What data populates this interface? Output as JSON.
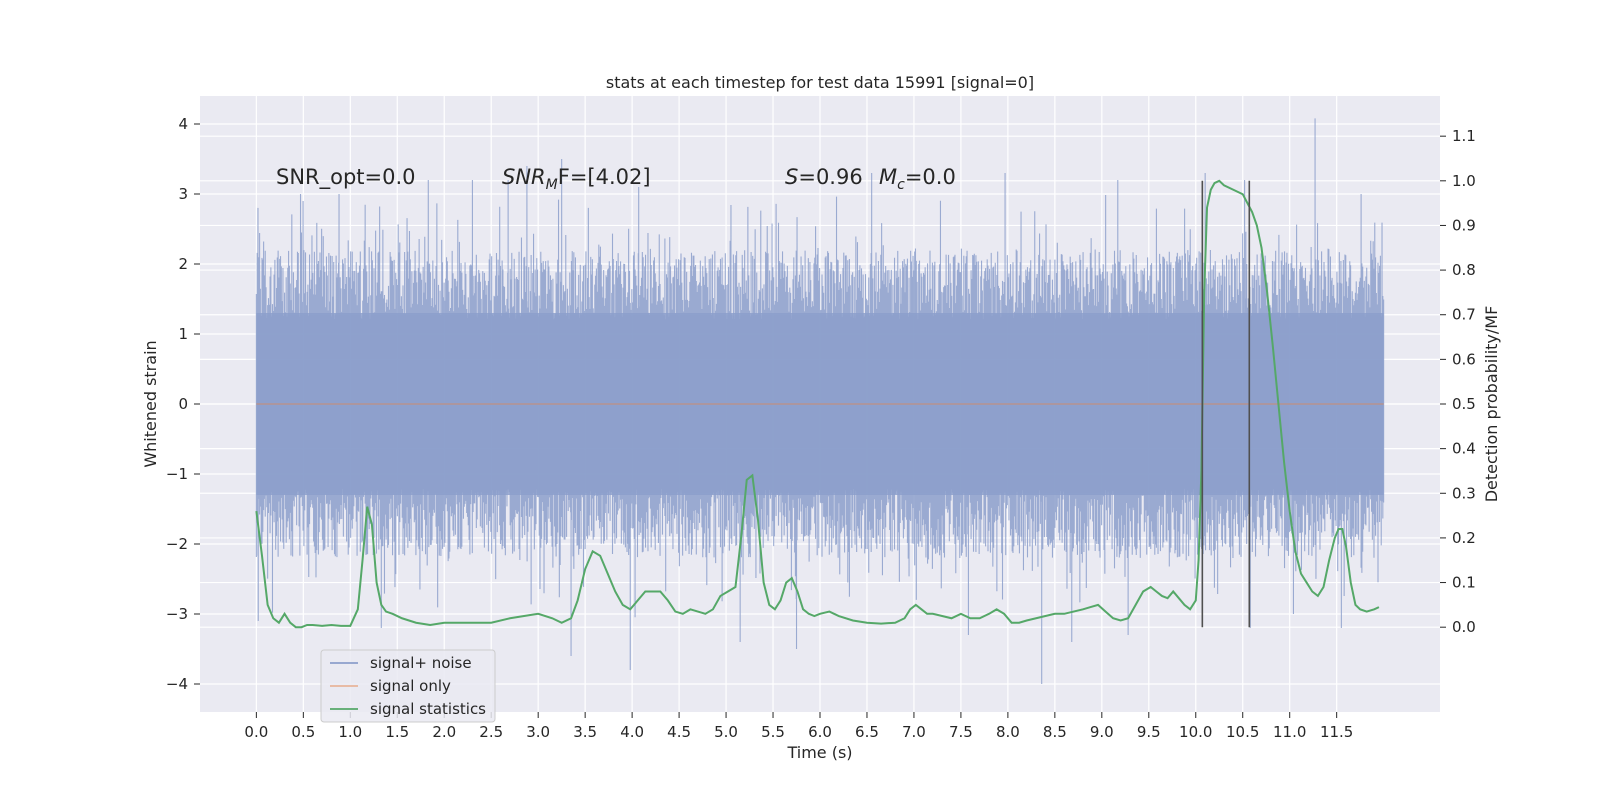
{
  "chart_data": {
    "type": "line",
    "title": "stats at each timestep for test data 15991 [signal=0]",
    "xlabel": "Time (s)",
    "ylabel": "Whitened strain",
    "y2label": "Detection probability/MF",
    "xlim": [
      -0.6,
      12.6
    ],
    "ylim": [
      -4.4,
      4.4
    ],
    "y2lim": [
      -0.19,
      1.19
    ],
    "x_ticks": [
      0.0,
      0.5,
      1.0,
      1.5,
      2.0,
      2.5,
      3.0,
      3.5,
      4.0,
      4.5,
      5.0,
      5.5,
      6.0,
      6.5,
      7.0,
      7.5,
      8.0,
      8.5,
      9.0,
      9.5,
      10.0,
      10.5,
      11.0,
      11.5
    ],
    "x_tick_labels": [
      "0.0",
      "0.5",
      "1.0",
      "1.5",
      "2.0",
      "2.5",
      "3.0",
      "3.5",
      "4.0",
      "4.5",
      "5.0",
      "5.5",
      "6.0",
      "6.5",
      "7.0",
      "7.5",
      "8.0",
      "8.5",
      "9.0",
      "9.5",
      "10.0",
      "10.5",
      "11.0",
      "11.5"
    ],
    "y_ticks": [
      4,
      3,
      2,
      1,
      0,
      -1,
      -2,
      -3,
      -4
    ],
    "y_tick_labels": [
      "4",
      "3",
      "2",
      "1",
      "0",
      "−1",
      "−2",
      "−3",
      "−4"
    ],
    "y2_ticks": [
      1.1,
      1.0,
      0.9,
      0.8,
      0.7,
      0.6,
      0.5,
      0.4,
      0.3,
      0.2,
      0.1,
      0.0
    ],
    "y2_tick_labels": [
      "1.1",
      "1.0",
      "0.9",
      "0.8",
      "0.7",
      "0.6",
      "0.5",
      "0.4",
      "0.3",
      "0.2",
      "0.1",
      "0.0"
    ],
    "grid": true,
    "legend": {
      "position": "lower-left",
      "entries": [
        {
          "label": "signal+ noise",
          "color": "#8c9fcb"
        },
        {
          "label": "signal only",
          "color": "#dd8452"
        },
        {
          "label": "signal statistics",
          "color": "#55a868"
        }
      ]
    },
    "annotations": {
      "snr_opt": "SNR_opt=0.0",
      "snr_mf_main": "SNR",
      "snr_mf_sub": "M",
      "snr_mf_rest": "F=[4.02]",
      "s_main": "S",
      "s_rest": "=0.96",
      "mc_main": "M",
      "mc_sub": "c",
      "mc_rest": "=0.0"
    },
    "series": [
      {
        "name": "signal+ noise",
        "axis": "left",
        "color": "#8c9fcb",
        "x_range": [
          0.0,
          12.0
        ],
        "upper_envelope_approx": 2.2,
        "lower_envelope_approx": -2.2,
        "notable_peaks": [
          [
            0.47,
            3.0
          ],
          [
            0.88,
            3.0
          ],
          [
            1.83,
            3.2
          ],
          [
            2.3,
            3.2
          ],
          [
            2.68,
            3.2
          ],
          [
            2.88,
            3.4
          ],
          [
            3.25,
            3.5
          ],
          [
            4.07,
            3.1
          ],
          [
            6.55,
            3.3
          ],
          [
            7.97,
            3.3
          ],
          [
            9.17,
            3.2
          ],
          [
            10.1,
            3.3
          ],
          [
            10.52,
            3.2
          ],
          [
            11.27,
            4.08
          ],
          [
            11.76,
            3.0
          ]
        ],
        "notable_troughs": [
          [
            0.02,
            -3.1
          ],
          [
            1.33,
            -3.2
          ],
          [
            3.35,
            -3.6
          ],
          [
            3.98,
            -3.8
          ],
          [
            5.15,
            -3.4
          ],
          [
            5.75,
            -3.5
          ],
          [
            7.58,
            -3.3
          ],
          [
            8.36,
            -4.0
          ],
          [
            8.68,
            -3.4
          ],
          [
            9.28,
            -3.3
          ],
          [
            10.58,
            -3.2
          ],
          [
            11.04,
            -3.0
          ],
          [
            11.55,
            -3.2
          ]
        ]
      },
      {
        "name": "signal only",
        "axis": "left",
        "color": "#dd8452",
        "x": [
          0.0,
          12.0
        ],
        "y": [
          0.0,
          0.0
        ]
      },
      {
        "name": "signal statistics",
        "axis": "right",
        "color": "#55a868",
        "x": [
          0.0,
          0.06,
          0.12,
          0.18,
          0.24,
          0.3,
          0.36,
          0.42,
          0.48,
          0.54,
          0.6,
          0.7,
          0.8,
          0.9,
          1.0,
          1.08,
          1.13,
          1.18,
          1.23,
          1.28,
          1.33,
          1.38,
          1.45,
          1.55,
          1.7,
          1.85,
          2.0,
          2.15,
          2.3,
          2.5,
          2.7,
          2.85,
          3.0,
          3.15,
          3.25,
          3.35,
          3.42,
          3.5,
          3.58,
          3.66,
          3.74,
          3.82,
          3.9,
          3.98,
          4.06,
          4.14,
          4.22,
          4.3,
          4.38,
          4.46,
          4.54,
          4.62,
          4.7,
          4.78,
          4.86,
          4.94,
          5.02,
          5.1,
          5.16,
          5.22,
          5.28,
          5.34,
          5.4,
          5.46,
          5.52,
          5.58,
          5.64,
          5.7,
          5.76,
          5.82,
          5.88,
          5.94,
          6.0,
          6.1,
          6.2,
          6.35,
          6.5,
          6.65,
          6.8,
          6.9,
          6.96,
          7.02,
          7.08,
          7.14,
          7.2,
          7.3,
          7.4,
          7.5,
          7.6,
          7.7,
          7.8,
          7.88,
          7.96,
          8.04,
          8.12,
          8.2,
          8.3,
          8.4,
          8.5,
          8.6,
          8.7,
          8.8,
          8.88,
          8.96,
          9.04,
          9.12,
          9.2,
          9.28,
          9.36,
          9.44,
          9.52,
          9.58,
          9.64,
          9.7,
          9.76,
          9.82,
          9.88,
          9.94,
          10.0,
          10.03,
          10.06,
          10.09,
          10.12,
          10.16,
          10.2,
          10.25,
          10.3,
          10.4,
          10.5,
          10.55,
          10.6,
          10.65,
          10.7,
          10.76,
          10.82,
          10.88,
          10.94,
          11.0,
          11.06,
          11.12,
          11.18,
          11.24,
          11.3,
          11.36,
          11.42,
          11.48,
          11.52,
          11.56,
          11.6,
          11.65,
          11.7,
          11.75,
          11.82,
          11.9,
          11.95
        ],
        "y": [
          0.26,
          0.16,
          0.05,
          0.02,
          0.01,
          0.03,
          0.01,
          0.0,
          0.0,
          0.005,
          0.005,
          0.003,
          0.005,
          0.003,
          0.003,
          0.04,
          0.15,
          0.27,
          0.23,
          0.1,
          0.05,
          0.035,
          0.03,
          0.02,
          0.01,
          0.005,
          0.01,
          0.01,
          0.01,
          0.01,
          0.02,
          0.025,
          0.03,
          0.02,
          0.01,
          0.02,
          0.06,
          0.13,
          0.17,
          0.16,
          0.12,
          0.08,
          0.05,
          0.04,
          0.06,
          0.08,
          0.08,
          0.08,
          0.06,
          0.035,
          0.03,
          0.04,
          0.035,
          0.03,
          0.04,
          0.07,
          0.08,
          0.09,
          0.2,
          0.33,
          0.34,
          0.24,
          0.1,
          0.05,
          0.04,
          0.06,
          0.1,
          0.11,
          0.08,
          0.04,
          0.03,
          0.025,
          0.03,
          0.035,
          0.025,
          0.015,
          0.01,
          0.008,
          0.01,
          0.02,
          0.04,
          0.05,
          0.04,
          0.03,
          0.03,
          0.025,
          0.02,
          0.03,
          0.02,
          0.02,
          0.03,
          0.04,
          0.03,
          0.01,
          0.01,
          0.015,
          0.02,
          0.025,
          0.03,
          0.03,
          0.035,
          0.04,
          0.045,
          0.05,
          0.035,
          0.02,
          0.015,
          0.02,
          0.05,
          0.08,
          0.09,
          0.08,
          0.07,
          0.065,
          0.08,
          0.065,
          0.05,
          0.04,
          0.06,
          0.15,
          0.35,
          0.75,
          0.94,
          0.98,
          0.995,
          1.0,
          0.99,
          0.98,
          0.97,
          0.95,
          0.93,
          0.9,
          0.85,
          0.75,
          0.63,
          0.5,
          0.37,
          0.26,
          0.17,
          0.12,
          0.1,
          0.08,
          0.07,
          0.09,
          0.15,
          0.2,
          0.22,
          0.22,
          0.18,
          0.1,
          0.05,
          0.04,
          0.035,
          0.04,
          0.045
        ]
      }
    ],
    "vertical_markers": {
      "color": "#505050",
      "x": [
        10.07,
        10.57
      ],
      "y2_range": [
        0.0,
        1.0
      ]
    }
  }
}
